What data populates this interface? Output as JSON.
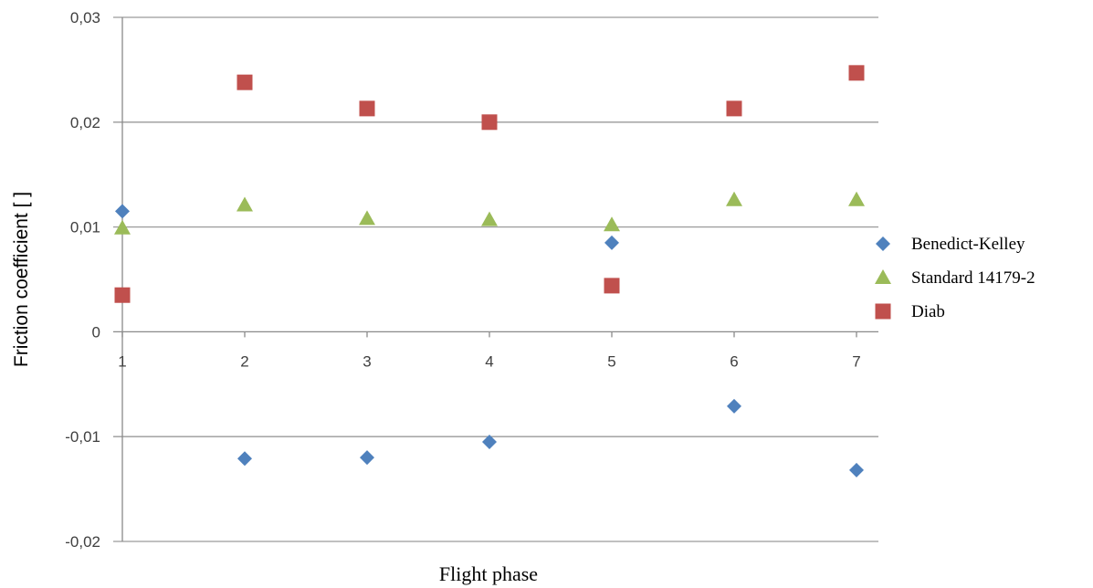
{
  "chart_data": {
    "type": "scatter",
    "title": "",
    "xlabel": "Flight phase",
    "ylabel": "Friction coefficient [ ]",
    "x": [
      1,
      2,
      3,
      4,
      5,
      6,
      7
    ],
    "xlim": [
      1,
      7
    ],
    "ylim": [
      -0.02,
      0.03
    ],
    "y_ticks": [
      -0.02,
      -0.01,
      0,
      0.01,
      0.02,
      0.03
    ],
    "y_tick_labels": [
      "-0,02",
      "-0,01",
      "0",
      "0,01",
      "0,02",
      "0,03"
    ],
    "x_tick_labels": [
      "1",
      "2",
      "3",
      "4",
      "5",
      "6",
      "7"
    ],
    "grid": "horizontal",
    "legend": "right",
    "series": [
      {
        "name": "Benedict-Kelley",
        "marker": "diamond",
        "color": "#4F81BD",
        "values": [
          0.0115,
          -0.0121,
          -0.012,
          -0.0105,
          0.0085,
          -0.0071,
          -0.0132
        ]
      },
      {
        "name": "Standard 14179-2",
        "marker": "triangle",
        "color": "#9BBB59",
        "values": [
          0.0099,
          0.0121,
          0.0108,
          0.0107,
          0.0102,
          0.0126,
          0.0126
        ]
      },
      {
        "name": "Diab",
        "marker": "square",
        "color": "#C0504D",
        "values": [
          0.0035,
          0.0238,
          0.0213,
          0.02,
          0.0044,
          0.0213,
          0.0247
        ]
      }
    ]
  }
}
